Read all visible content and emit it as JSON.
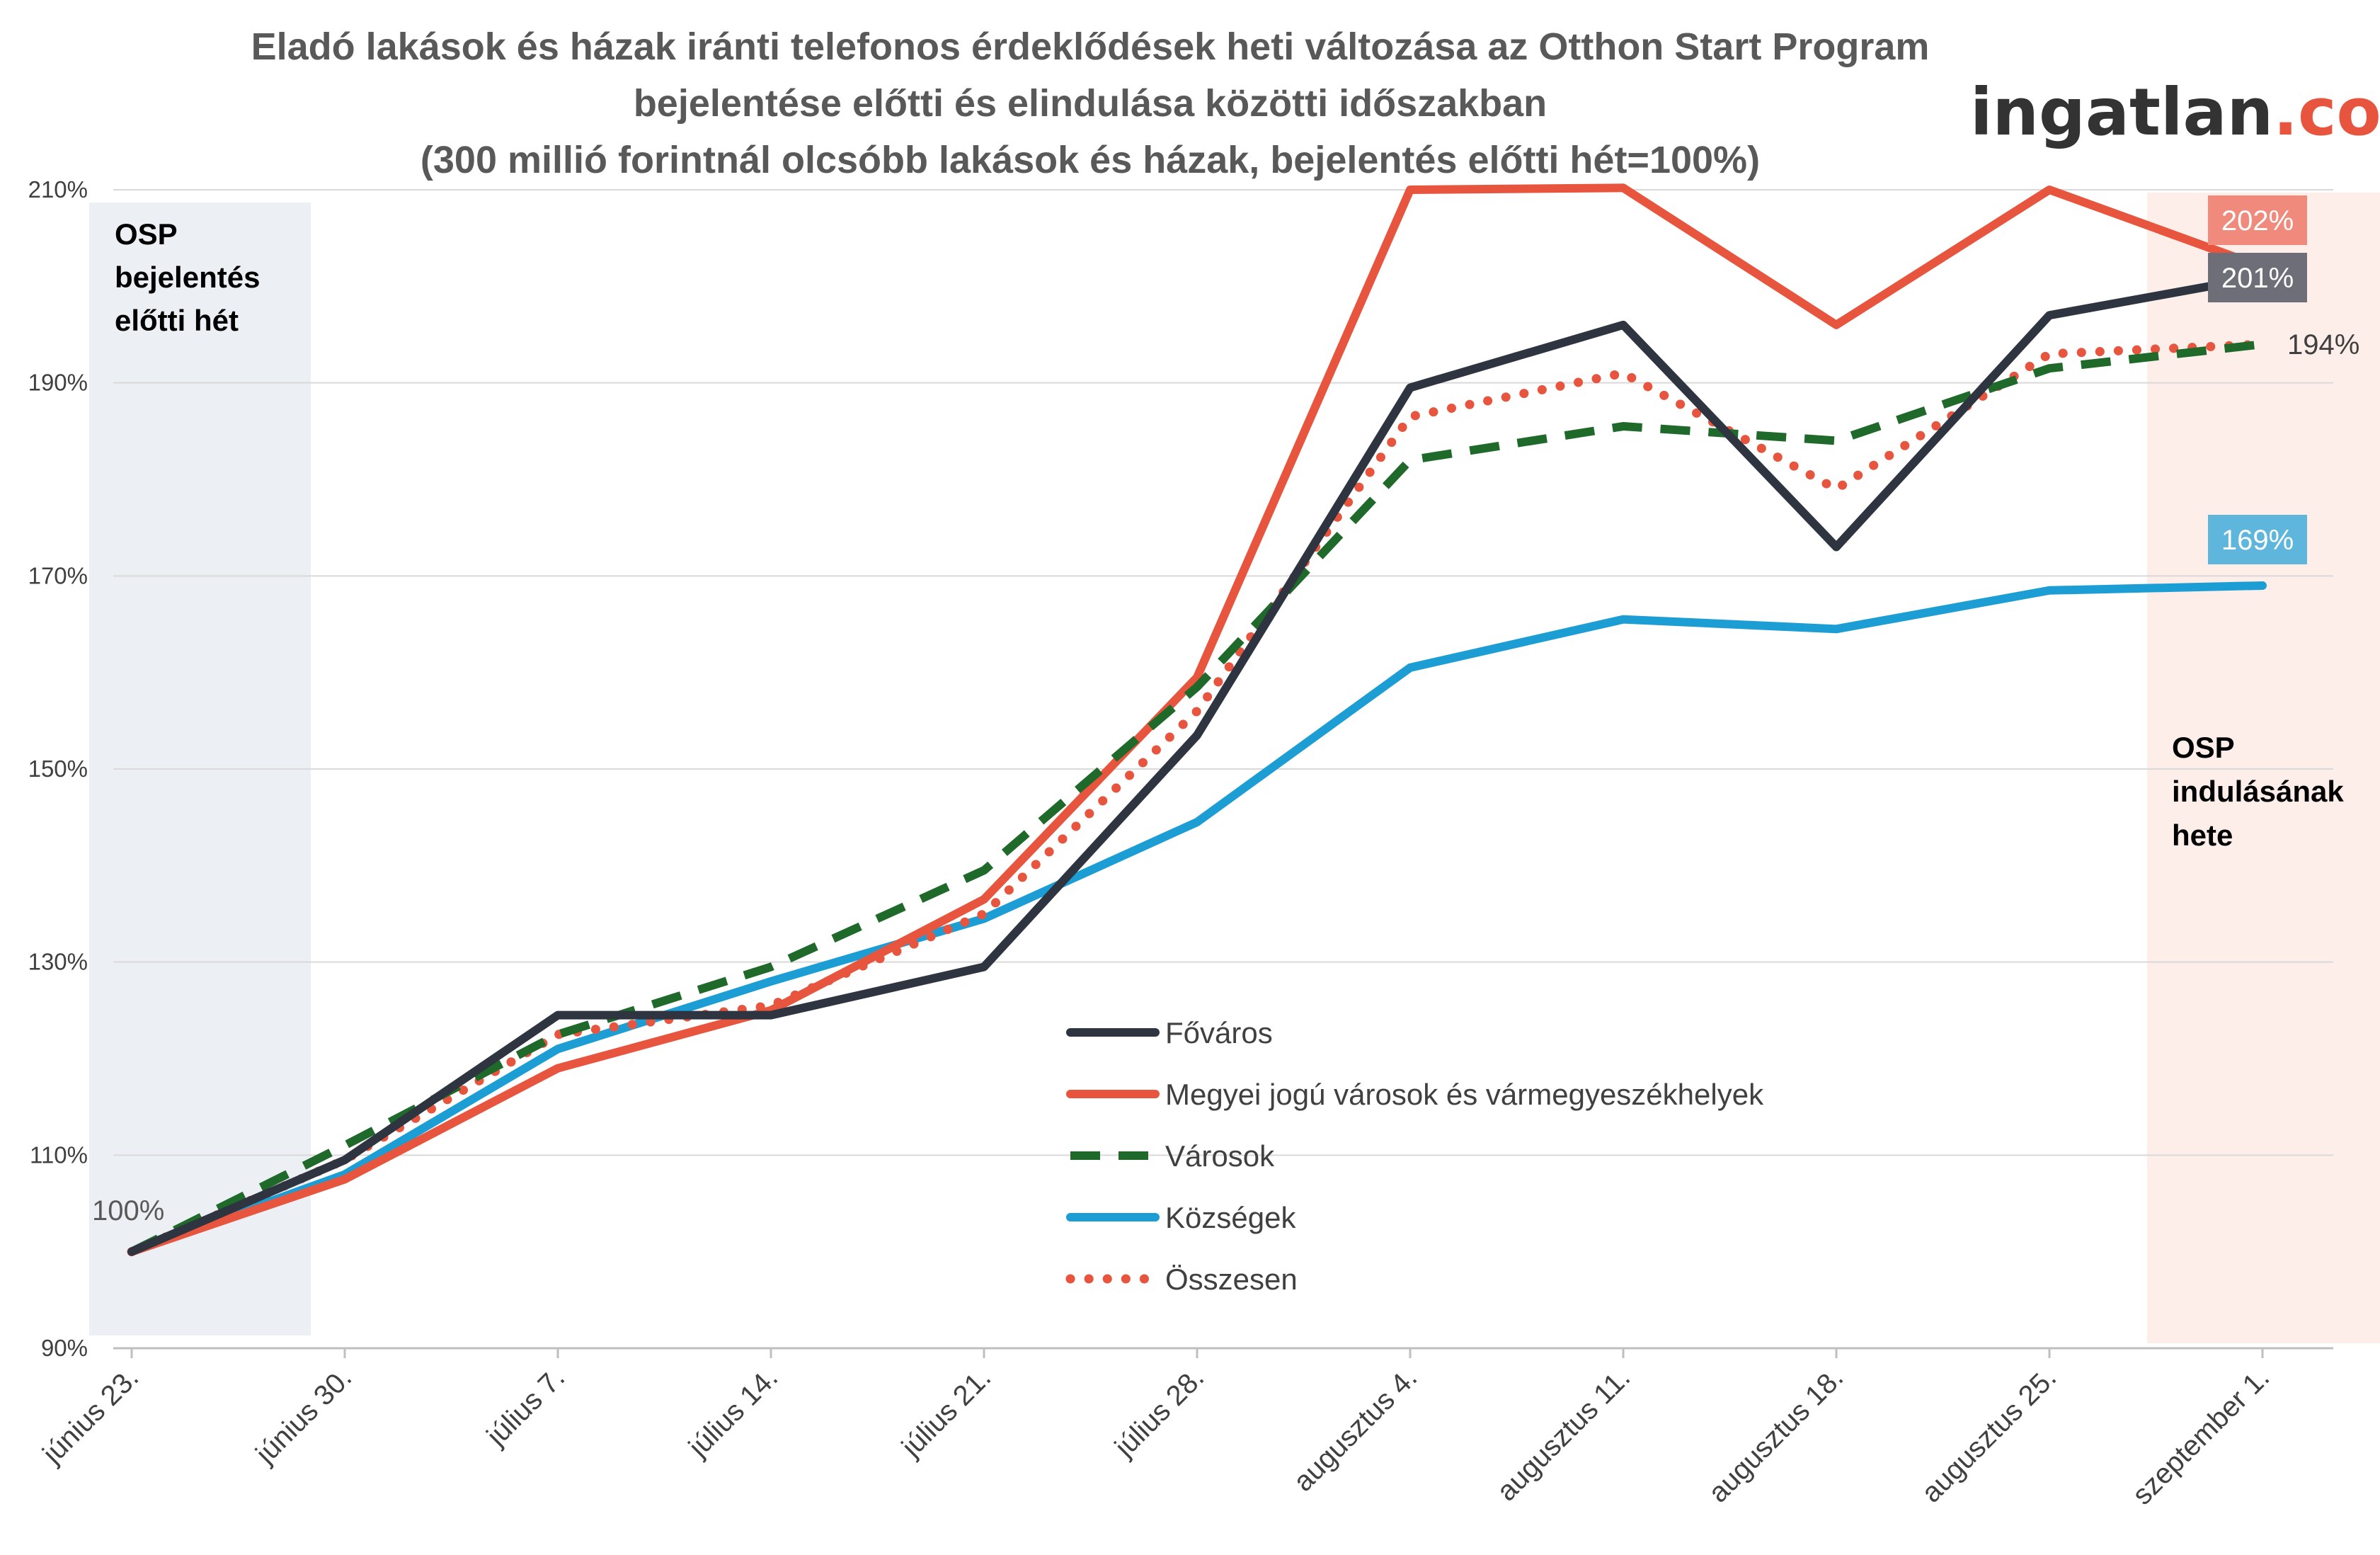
{
  "chart_data": {
    "type": "line",
    "title": [
      "Eladó lakások és házak iránti telefonos érdeklődések heti változása az Otthon Start Program",
      "bejelentése előtti és elindulása közötti időszakban",
      "(300 millió forintnál olcsóbb lakások és házak, bejelentés előtti hét=100%)"
    ],
    "brand": {
      "text_main": "ingatlan",
      "text_suffix": ".com",
      "color_main": "#333333",
      "color_suffix": "#e8553f"
    },
    "categories": [
      "június 23.",
      "június 30.",
      "július 7.",
      "július 14.",
      "július 21.",
      "július 28.",
      "augusztus 4.",
      "augusztus 11.",
      "augusztus 18.",
      "augusztus 25.",
      "szeptember 1."
    ],
    "ylim": [
      90,
      210
    ],
    "yticks": [
      90,
      110,
      130,
      150,
      170,
      190,
      210
    ],
    "yticks_labels": [
      "90%",
      "110%",
      "130%",
      "150%",
      "170%",
      "190%",
      "210%"
    ],
    "grid": true,
    "legend_position": "center-bottom",
    "series": [
      {
        "name": "Főváros",
        "color": "#2e3440",
        "style": "solid",
        "values": [
          100,
          109.5,
          124.5,
          124.5,
          129.5,
          153.5,
          189.5,
          196,
          173,
          197,
          201
        ]
      },
      {
        "name": "Megyei jogú városok és vármegyeszékhelyek",
        "color": "#e8553f",
        "style": "solid",
        "values": [
          100,
          107.5,
          119,
          125,
          136.5,
          159.5,
          210,
          210.2,
          196,
          210,
          202
        ]
      },
      {
        "name": "Városok",
        "color": "#1f6a2a",
        "style": "dashed",
        "values": [
          100,
          111,
          122.5,
          129.5,
          139.5,
          158.5,
          182,
          185.5,
          184,
          191.5,
          194
        ]
      },
      {
        "name": "Községek",
        "color": "#1c9ed4",
        "style": "solid",
        "values": [
          100,
          108,
          121,
          128,
          134.5,
          144.5,
          160.5,
          165.5,
          164.5,
          168.5,
          169
        ]
      },
      {
        "name": "Összesen",
        "color": "#e8553f",
        "style": "dotted",
        "values": [
          100,
          109.5,
          122.5,
          125.5,
          135,
          156,
          186.5,
          191,
          179,
          193,
          194
        ]
      }
    ],
    "annotations": {
      "band_left_text": [
        "OSP",
        "bejelentés",
        "előtti hét"
      ],
      "band_right_text": [
        "OSP",
        "indulásának",
        "hete"
      ],
      "start_label": "100%",
      "end_labels": [
        {
          "text": "202%",
          "series": 1,
          "bg": "#ef8a7c",
          "fg": "#ffffff"
        },
        {
          "text": "201%",
          "series": 0,
          "bg": "#6e6e78",
          "fg": "#ffffff"
        },
        {
          "text": "194%",
          "series": 2,
          "bg": "",
          "fg": "#404040"
        },
        {
          "text": "169%",
          "series": 3,
          "bg": "#5fb6dc",
          "fg": "#ffffff"
        }
      ]
    },
    "band_colors": {
      "left": "#eceff3",
      "right": "#fdeeea"
    }
  }
}
